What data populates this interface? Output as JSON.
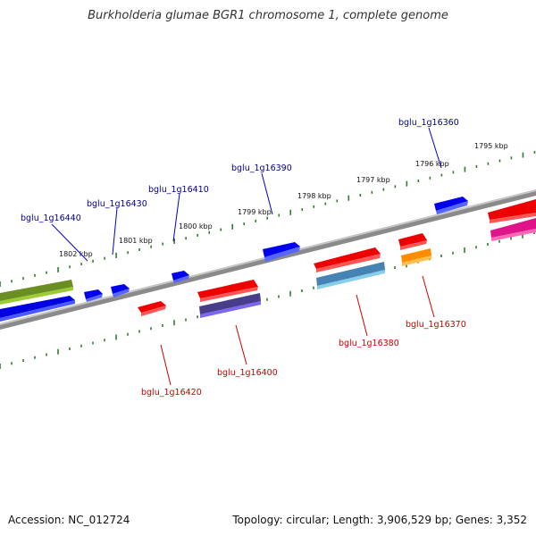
{
  "title": "Burkholderia glumae BGR1 chromosome 1, complete genome",
  "footer": {
    "accession": "Accession: NC_012724",
    "topology": "Topology: circular; Length: 3,906,529 bp; Genes: 3,352"
  },
  "scale_labels": [
    "1795 kbp",
    "1796 kbp",
    "1797 kbp",
    "1798 kbp",
    "1799 kbp",
    "1800 kbp",
    "1801 kbp",
    "1802 kbp"
  ],
  "genes_forward": [
    {
      "name": "bglu_1g16360",
      "color": "#00008b"
    },
    {
      "name": "bglu_1g16390",
      "color": "#00008b"
    },
    {
      "name": "bglu_1g16410",
      "color": "#00008b"
    },
    {
      "name": "bglu_1g16430",
      "color": "#00008b"
    },
    {
      "name": "bglu_1g16440",
      "color": "#00008b"
    }
  ],
  "genes_reverse": [
    {
      "name": "bglu_1g16370",
      "color": "#cc0000"
    },
    {
      "name": "bglu_1g16380",
      "color": "#cc0000"
    },
    {
      "name": "bglu_1g16400",
      "color": "#cc0000"
    },
    {
      "name": "bglu_1g16420",
      "color": "#cc0000"
    }
  ],
  "colors": {
    "forward_gene": "#0000ee",
    "reverse_gene": "#ee0000",
    "backbone": "#888888",
    "ticks": "#2e7d2e"
  }
}
